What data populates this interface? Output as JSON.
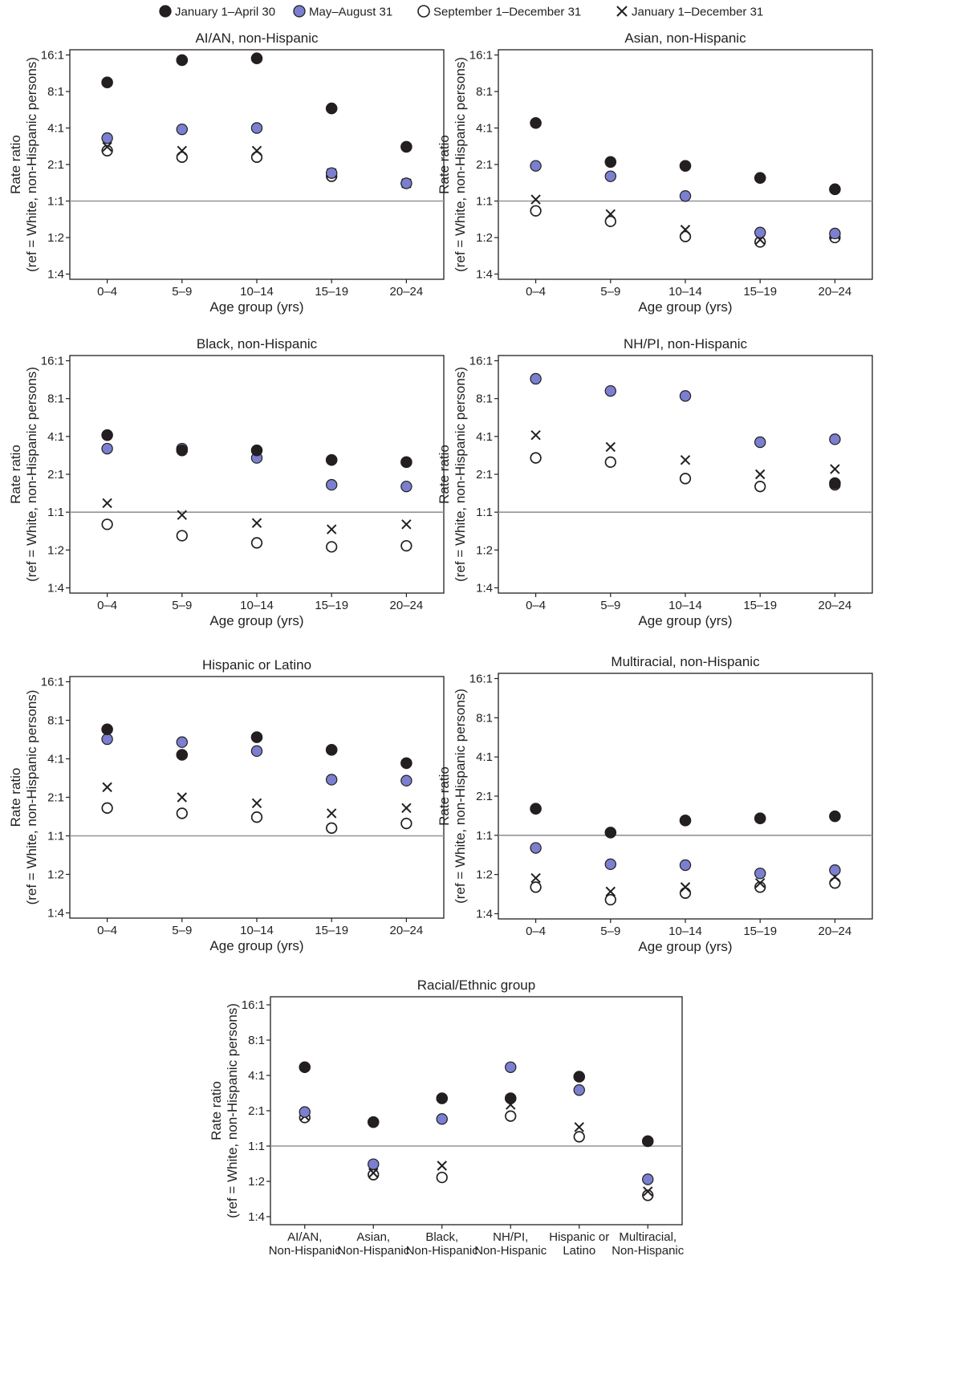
{
  "legend": {
    "items": [
      {
        "key": "jan_apr",
        "label": "January 1–April 30",
        "marker": "filled-black-circle"
      },
      {
        "key": "may_aug",
        "label": "May–August 31",
        "marker": "filled-blue-circle"
      },
      {
        "key": "sep_dec",
        "label": "September 1–December 31",
        "marker": "open-circle"
      },
      {
        "key": "full_year",
        "label": "January 1–December 31",
        "marker": "x-cross"
      }
    ]
  },
  "colors": {
    "black": "#231f20",
    "blue": "#7b7fd0",
    "reference_line": "#939598",
    "frame": "#231f20"
  },
  "chart_data": [
    {
      "type": "scatter",
      "title": "AI/AN, non-Hispanic",
      "xlabel": "Age group (yrs)",
      "ylabel": [
        "Rate ratio",
        "(ref = White, non-Hispanic persons)"
      ],
      "yscale": "log2",
      "ylim": [
        0.25,
        16
      ],
      "yticks": [
        {
          "v": 16,
          "label": "16:1"
        },
        {
          "v": 8,
          "label": "8:1"
        },
        {
          "v": 4,
          "label": "4:1"
        },
        {
          "v": 2,
          "label": "2:1"
        },
        {
          "v": 1,
          "label": "1:1"
        },
        {
          "v": 0.5,
          "label": "1:2"
        },
        {
          "v": 0.25,
          "label": "1:4"
        }
      ],
      "reference_line": 1,
      "categories": [
        [
          "0–4"
        ],
        [
          "5–9"
        ],
        [
          "10–14"
        ],
        [
          "15–19"
        ],
        [
          "20–24"
        ]
      ],
      "series": [
        {
          "key": "jan_apr",
          "values": [
            9.5,
            14.5,
            15,
            5.8,
            2.8
          ]
        },
        {
          "key": "may_aug",
          "values": [
            3.3,
            3.9,
            4.0,
            1.7,
            1.4
          ]
        },
        {
          "key": "sep_dec",
          "values": [
            2.6,
            2.3,
            2.3,
            1.6,
            1.4
          ]
        },
        {
          "key": "full_year",
          "values": [
            2.8,
            2.6,
            2.6,
            1.7,
            1.4
          ]
        }
      ]
    },
    {
      "type": "scatter",
      "title": "Asian, non-Hispanic",
      "xlabel": "Age group (yrs)",
      "ylabel": [
        "Rate ratio",
        "(ref = White, non-Hispanic persons)"
      ],
      "yscale": "log2",
      "ylim": [
        0.25,
        16
      ],
      "yticks": [
        {
          "v": 16,
          "label": "16:1"
        },
        {
          "v": 8,
          "label": "8:1"
        },
        {
          "v": 4,
          "label": "4:1"
        },
        {
          "v": 2,
          "label": "2:1"
        },
        {
          "v": 1,
          "label": "1:1"
        },
        {
          "v": 0.5,
          "label": "1:2"
        },
        {
          "v": 0.25,
          "label": "1:4"
        }
      ],
      "reference_line": 1,
      "categories": [
        [
          "0–4"
        ],
        [
          "5–9"
        ],
        [
          "10–14"
        ],
        [
          "15–19"
        ],
        [
          "20–24"
        ]
      ],
      "series": [
        {
          "key": "jan_apr",
          "values": [
            4.4,
            2.1,
            1.95,
            1.55,
            1.25
          ]
        },
        {
          "key": "may_aug",
          "values": [
            1.95,
            1.6,
            1.1,
            0.55,
            0.54
          ]
        },
        {
          "key": "sep_dec",
          "values": [
            0.83,
            0.68,
            0.51,
            0.46,
            0.5
          ]
        },
        {
          "key": "full_year",
          "values": [
            1.03,
            0.78,
            0.58,
            0.48,
            0.53
          ]
        }
      ]
    },
    {
      "type": "scatter",
      "title": "Black, non-Hispanic",
      "xlabel": "Age group (yrs)",
      "ylabel": [
        "Rate ratio",
        "(ref = White, non-Hispanic persons)"
      ],
      "yscale": "log2",
      "ylim": [
        0.25,
        16
      ],
      "yticks": [
        {
          "v": 16,
          "label": "16:1"
        },
        {
          "v": 8,
          "label": "8:1"
        },
        {
          "v": 4,
          "label": "4:1"
        },
        {
          "v": 2,
          "label": "2:1"
        },
        {
          "v": 1,
          "label": "1:1"
        },
        {
          "v": 0.5,
          "label": "1:2"
        },
        {
          "v": 0.25,
          "label": "1:4"
        }
      ],
      "reference_line": 1,
      "categories": [
        [
          "0–4"
        ],
        [
          "5–9"
        ],
        [
          "10–14"
        ],
        [
          "15–19"
        ],
        [
          "20–24"
        ]
      ],
      "series": [
        {
          "key": "jan_apr",
          "values": [
            4.1,
            3.1,
            3.1,
            2.6,
            2.5
          ]
        },
        {
          "key": "may_aug",
          "values": [
            3.2,
            3.2,
            2.7,
            1.65,
            1.6
          ]
        },
        {
          "key": "sep_dec",
          "values": [
            0.8,
            0.65,
            0.57,
            0.53,
            0.54
          ]
        },
        {
          "key": "full_year",
          "values": [
            1.18,
            0.95,
            0.82,
            0.73,
            0.8
          ]
        }
      ]
    },
    {
      "type": "scatter",
      "title": "NH/PI, non-Hispanic",
      "xlabel": "Age group (yrs)",
      "ylabel": [
        "Rate ratio",
        "(ref = White, non-Hispanic persons)"
      ],
      "yscale": "log2",
      "ylim": [
        0.25,
        16
      ],
      "yticks": [
        {
          "v": 16,
          "label": "16:1"
        },
        {
          "v": 8,
          "label": "8:1"
        },
        {
          "v": 4,
          "label": "4:1"
        },
        {
          "v": 2,
          "label": "2:1"
        },
        {
          "v": 1,
          "label": "1:1"
        },
        {
          "v": 0.5,
          "label": "1:2"
        },
        {
          "v": 0.25,
          "label": "1:4"
        }
      ],
      "reference_line": 1,
      "categories": [
        [
          "0–4"
        ],
        [
          "5–9"
        ],
        [
          "10–14"
        ],
        [
          "15–19"
        ],
        [
          "20–24"
        ]
      ],
      "series": [
        {
          "key": "jan_apr",
          "values": [
            null,
            null,
            null,
            null,
            1.7
          ]
        },
        {
          "key": "may_aug",
          "values": [
            11.5,
            9.2,
            8.4,
            3.6,
            3.8
          ]
        },
        {
          "key": "sep_dec",
          "values": [
            2.7,
            2.5,
            1.85,
            1.6,
            1.65
          ]
        },
        {
          "key": "full_year",
          "values": [
            4.1,
            3.3,
            2.6,
            2.0,
            2.2
          ]
        }
      ]
    },
    {
      "type": "scatter",
      "title": "Hispanic or Latino",
      "xlabel": "Age group (yrs)",
      "ylabel": [
        "Rate ratio",
        "(ref = White, non-Hispanic persons)"
      ],
      "yscale": "log2",
      "ylim": [
        0.25,
        16
      ],
      "yticks": [
        {
          "v": 16,
          "label": "16:1"
        },
        {
          "v": 8,
          "label": "8:1"
        },
        {
          "v": 4,
          "label": "4:1"
        },
        {
          "v": 2,
          "label": "2:1"
        },
        {
          "v": 1,
          "label": "1:1"
        },
        {
          "v": 0.5,
          "label": "1:2"
        },
        {
          "v": 0.25,
          "label": "1:4"
        }
      ],
      "reference_line": 1,
      "categories": [
        [
          "0–4"
        ],
        [
          "5–9"
        ],
        [
          "10–14"
        ],
        [
          "15–19"
        ],
        [
          "20–24"
        ]
      ],
      "series": [
        {
          "key": "jan_apr",
          "values": [
            6.8,
            4.3,
            5.9,
            4.7,
            3.7
          ]
        },
        {
          "key": "may_aug",
          "values": [
            5.7,
            5.4,
            4.6,
            2.75,
            2.7
          ]
        },
        {
          "key": "sep_dec",
          "values": [
            1.65,
            1.5,
            1.4,
            1.15,
            1.25
          ]
        },
        {
          "key": "full_year",
          "values": [
            2.4,
            2.0,
            1.8,
            1.5,
            1.65
          ]
        }
      ]
    },
    {
      "type": "scatter",
      "title": "Multiracial, non-Hispanic",
      "xlabel": "Age group (yrs)",
      "ylabel": [
        "Rate ratio",
        "(ref = White, non-Hispanic persons)"
      ],
      "yscale": "log2",
      "ylim": [
        0.25,
        16
      ],
      "yticks": [
        {
          "v": 16,
          "label": "16:1"
        },
        {
          "v": 8,
          "label": "8:1"
        },
        {
          "v": 4,
          "label": "4:1"
        },
        {
          "v": 2,
          "label": "2:1"
        },
        {
          "v": 1,
          "label": "1:1"
        },
        {
          "v": 0.5,
          "label": "1:2"
        },
        {
          "v": 0.25,
          "label": "1:4"
        }
      ],
      "reference_line": 1,
      "categories": [
        [
          "0–4"
        ],
        [
          "5–9"
        ],
        [
          "10–14"
        ],
        [
          "15–19"
        ],
        [
          "20–24"
        ]
      ],
      "series": [
        {
          "key": "jan_apr",
          "values": [
            1.6,
            1.05,
            1.3,
            1.35,
            1.4
          ]
        },
        {
          "key": "may_aug",
          "values": [
            0.8,
            0.6,
            0.59,
            0.51,
            0.54
          ]
        },
        {
          "key": "sep_dec",
          "values": [
            0.4,
            0.32,
            0.36,
            0.4,
            0.43
          ]
        },
        {
          "key": "full_year",
          "values": [
            0.47,
            0.37,
            0.4,
            0.43,
            0.48
          ]
        }
      ]
    },
    {
      "type": "scatter",
      "title": "Racial/Ethnic group",
      "xlabel": "",
      "ylabel": [
        "Rate ratio",
        "(ref = White, non-Hispanic persons)"
      ],
      "yscale": "log2",
      "ylim": [
        0.25,
        16
      ],
      "yticks": [
        {
          "v": 16,
          "label": "16:1"
        },
        {
          "v": 8,
          "label": "8:1"
        },
        {
          "v": 4,
          "label": "4:1"
        },
        {
          "v": 2,
          "label": "2:1"
        },
        {
          "v": 1,
          "label": "1:1"
        },
        {
          "v": 0.5,
          "label": "1:2"
        },
        {
          "v": 0.25,
          "label": "1:4"
        }
      ],
      "reference_line": 1,
      "categories": [
        [
          "AI/AN,",
          "Non-Hispanic"
        ],
        [
          "Asian,",
          "Non-Hispanic"
        ],
        [
          "Black,",
          "Non-Hispanic"
        ],
        [
          "NH/PI,",
          "Non-Hispanic"
        ],
        [
          "Hispanic or",
          "Latino"
        ],
        [
          "Multiracial,",
          "Non-Hispanic"
        ]
      ],
      "series": [
        {
          "key": "jan_apr",
          "values": [
            4.7,
            1.6,
            2.55,
            2.55,
            3.9,
            1.1
          ]
        },
        {
          "key": "may_aug",
          "values": [
            1.95,
            0.7,
            1.7,
            4.7,
            3.0,
            0.52
          ]
        },
        {
          "key": "sep_dec",
          "values": [
            1.75,
            0.57,
            0.54,
            1.8,
            1.2,
            0.38
          ]
        },
        {
          "key": "full_year",
          "values": [
            1.8,
            0.59,
            0.68,
            2.25,
            1.45,
            0.41
          ]
        }
      ]
    }
  ]
}
